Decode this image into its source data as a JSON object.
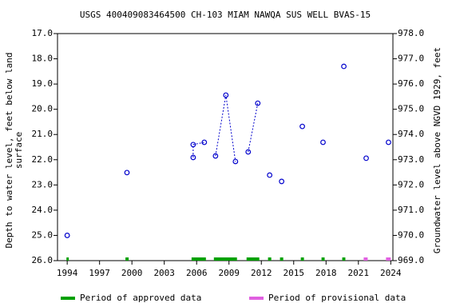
{
  "chart_data": {
    "type": "scatter",
    "title": "USGS 400409083464500 CH-103 MIAM NAWQA SUS WELL BVAS-15",
    "ylabel": [
      "Depth to water level, feet below land",
      "surface"
    ],
    "y2label": "Groundwater level above NGVD 1929, feet",
    "color": "#0000cc",
    "series": [
      {
        "x": [
          1994.0
        ],
        "values": [
          25.0
        ]
      },
      {
        "x": [
          1999.54
        ],
        "values": [
          22.51
        ]
      },
      {
        "x": [
          2005.68,
          2005.68,
          2006.71
        ],
        "values": [
          21.91,
          21.4,
          21.31
        ]
      },
      {
        "x": [
          2007.75,
          2008.71,
          2009.6
        ],
        "values": [
          21.85,
          19.44,
          22.07
        ]
      },
      {
        "x": [
          2010.78,
          2011.67
        ],
        "values": [
          21.69,
          19.76
        ]
      },
      {
        "x": [
          2012.77
        ],
        "values": [
          22.61
        ]
      },
      {
        "x": [
          2013.88
        ],
        "values": [
          22.86
        ]
      },
      {
        "x": [
          2015.8
        ],
        "values": [
          20.68
        ]
      },
      {
        "x": [
          2017.72
        ],
        "values": [
          21.31
        ]
      },
      {
        "x": [
          2019.65
        ],
        "values": [
          18.3
        ]
      },
      {
        "x": [
          2021.72
        ],
        "values": [
          21.94
        ]
      },
      {
        "x": [
          2023.79
        ],
        "values": [
          21.31
        ]
      }
    ],
    "periods": [
      {
        "name": "Period of approved data",
        "color": "#00a000",
        "ranges": [
          [
            1993.93,
            1994.15
          ],
          [
            1999.4,
            1999.7
          ],
          [
            2005.53,
            2006.86
          ],
          [
            2007.6,
            2009.74
          ],
          [
            2010.63,
            2011.81
          ],
          [
            2012.62,
            2012.92
          ],
          [
            2013.73,
            2014.03
          ],
          [
            2015.66,
            2015.95
          ],
          [
            2017.58,
            2017.87
          ],
          [
            2019.5,
            2019.79
          ]
        ]
      },
      {
        "name": "Period of provisional data",
        "color": "#e060e0",
        "ranges": [
          [
            2021.49,
            2021.86
          ],
          [
            2023.56,
            2024.0
          ]
        ]
      }
    ],
    "xlim": [
      1993.1,
      2024.2
    ],
    "xticks": [
      1994,
      1997,
      2000,
      2003,
      2006,
      2009,
      2012,
      2015,
      2018,
      2021,
      2024
    ],
    "ylim": [
      17,
      26
    ],
    "yticks": [
      {
        "value": 17,
        "label": "17.0"
      },
      {
        "value": 18,
        "label": "18.0"
      },
      {
        "value": 19,
        "label": "19.0"
      },
      {
        "value": 20,
        "label": "20.0"
      },
      {
        "value": 21,
        "label": "21.0"
      },
      {
        "value": 22,
        "label": "22.0"
      },
      {
        "value": 23,
        "label": "23.0"
      },
      {
        "value": 24,
        "label": "24.0"
      },
      {
        "value": 25,
        "label": "25.0"
      },
      {
        "value": 26,
        "label": "26.0"
      }
    ],
    "y2lim": [
      978,
      969
    ],
    "y2ticks": [
      {
        "value": 978,
        "label": "978.0"
      },
      {
        "value": 977,
        "label": "977.0"
      },
      {
        "value": 976,
        "label": "976.0"
      },
      {
        "value": 975,
        "label": "975.0"
      },
      {
        "value": 974,
        "label": "974.0"
      },
      {
        "value": 973,
        "label": "973.0"
      },
      {
        "value": 972,
        "label": "972.0"
      },
      {
        "value": 971,
        "label": "971.0"
      },
      {
        "value": 970,
        "label": "970.0"
      },
      {
        "value": 969,
        "label": "969.0"
      }
    ],
    "grid": false
  }
}
